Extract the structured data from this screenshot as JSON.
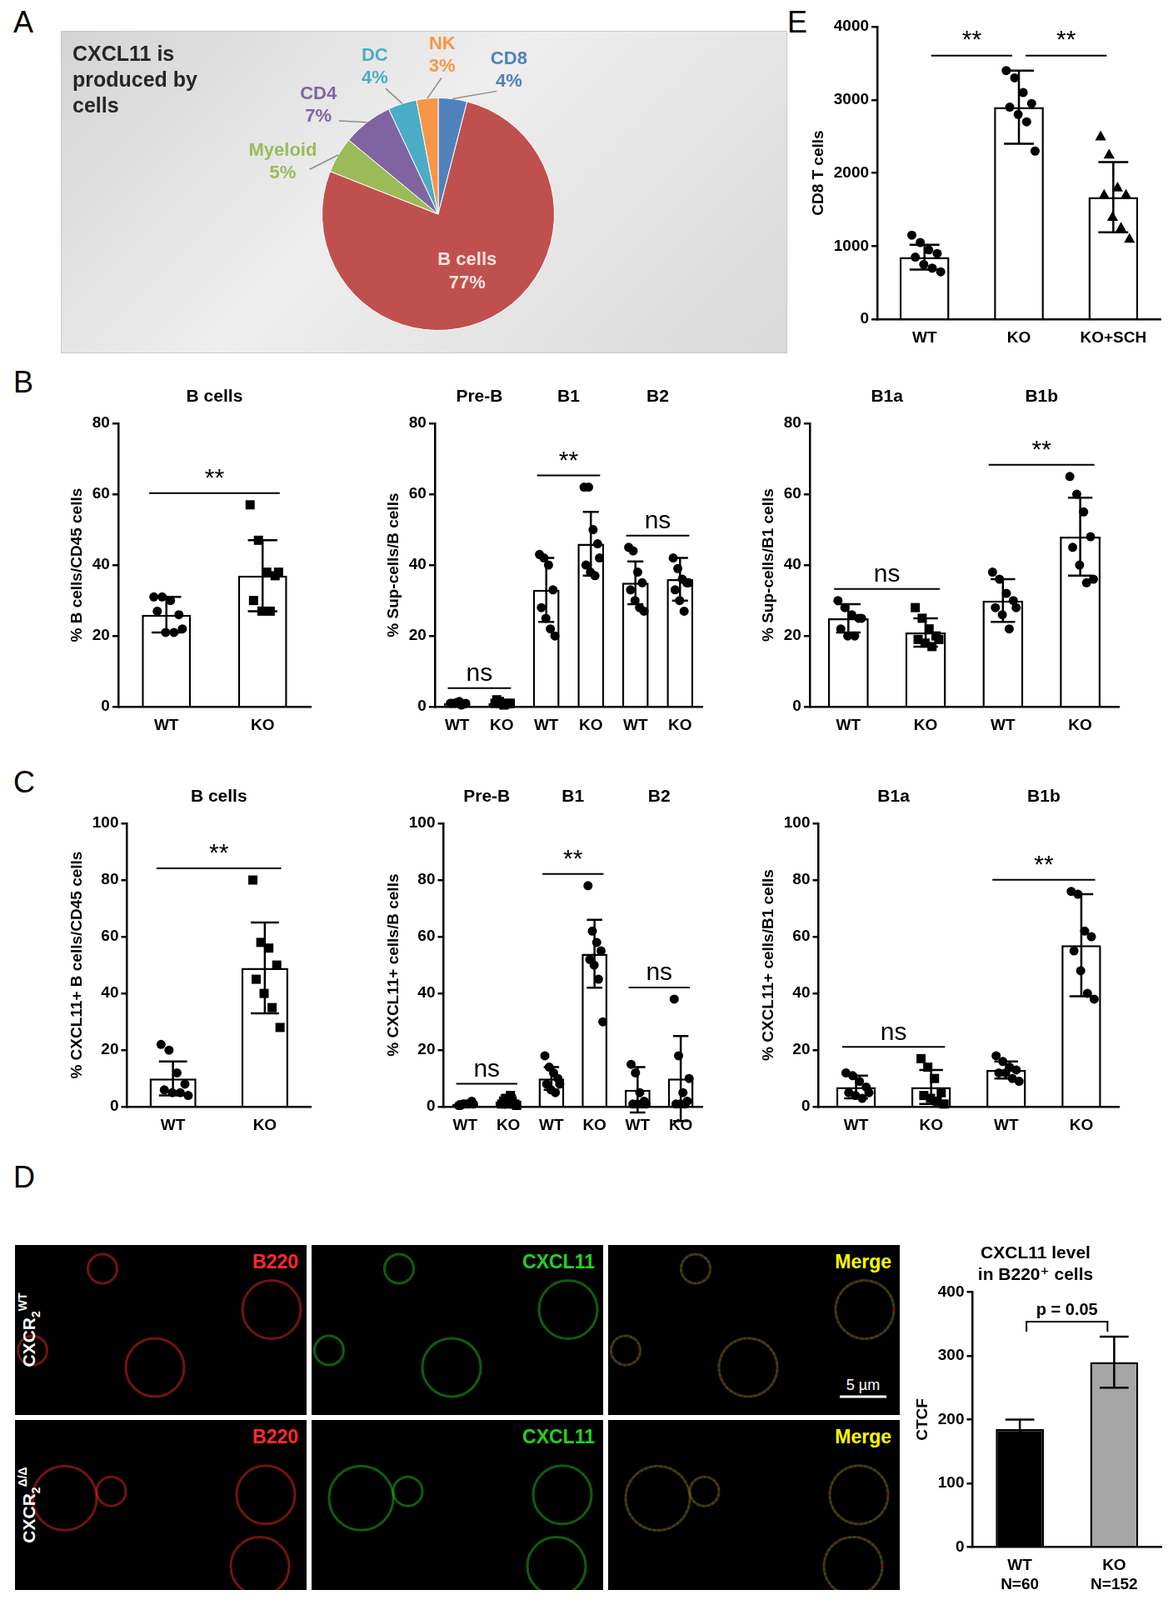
{
  "panel_labels": [
    "A",
    "B",
    "C",
    "D",
    "E"
  ],
  "chart_data": [
    {
      "panel": "A",
      "type": "pie",
      "title": "CXCL11 is produced by cells",
      "categories": [
        "CD8",
        "B cells",
        "Myeloid",
        "CD4",
        "DC",
        "NK"
      ],
      "values": [
        4,
        77,
        5,
        7,
        4,
        3
      ],
      "value_labels": [
        "4%",
        "77%",
        "5%",
        "7%",
        "4%",
        "3%"
      ],
      "colors": [
        "#4f81bd",
        "#c0504d",
        "#9bbb59",
        "#8064a2",
        "#4bacc6",
        "#f79646"
      ],
      "data_labels": true
    },
    {
      "panel": "B",
      "type": "bar",
      "categories": [
        "WT",
        "KO"
      ],
      "values": [
        26,
        37
      ],
      "errors": [
        5,
        10
      ],
      "points": [
        [
          31,
          31,
          30,
          26,
          27,
          21,
          21,
          22
        ],
        [
          57,
          47,
          38,
          37,
          30,
          27,
          27,
          38
        ]
      ],
      "markers": [
        "circle",
        "rect"
      ],
      "groups": [
        {
          "label": "B cells",
          "significance": "**"
        }
      ],
      "y_label": "% B cells/CD45 cells",
      "ylim": [
        0,
        80
      ],
      "yticks": [
        0,
        20,
        40,
        60,
        80
      ],
      "color": "#ffffff",
      "grid": false
    },
    {
      "panel": "B",
      "type": "bar",
      "categories": [
        "WT",
        "KO",
        "WT",
        "KO",
        "WT",
        "KO"
      ],
      "values": [
        1,
        1,
        33,
        46,
        35,
        36
      ],
      "errors": [
        0.5,
        0.5,
        9,
        9,
        6,
        6
      ],
      "points": [
        [
          1,
          1,
          1.5,
          0.8,
          1,
          1.2,
          0.5,
          1
        ],
        [
          1,
          1.5,
          0.5,
          1,
          2,
          1,
          0.8,
          1
        ],
        [
          43,
          42,
          40,
          33,
          28,
          25,
          22,
          20
        ],
        [
          62,
          62,
          50,
          46,
          40,
          38,
          37,
          42
        ],
        [
          45,
          44,
          38,
          35,
          33,
          30,
          28,
          27
        ],
        [
          42,
          39,
          36,
          35,
          33,
          30,
          27,
          35
        ]
      ],
      "markers": [
        "circle",
        "rect",
        "circle",
        "circle",
        "circle",
        "circle"
      ],
      "groups": [
        {
          "label": "Pre-B",
          "significance": "ns"
        },
        {
          "label": "B1",
          "significance": "**"
        },
        {
          "label": "B2",
          "significance": "ns"
        }
      ],
      "y_label": "% Sup-cells/B cells",
      "ylim": [
        0,
        80
      ],
      "yticks": [
        0,
        20,
        40,
        60,
        80
      ],
      "color": "#ffffff",
      "grid": false
    },
    {
      "panel": "B",
      "type": "bar",
      "categories": [
        "WT",
        "KO",
        "WT",
        "KO"
      ],
      "values": [
        25,
        21,
        30,
        48
      ],
      "errors": [
        4,
        4,
        6,
        11
      ],
      "points": [
        [
          30,
          28,
          26,
          25,
          22,
          20,
          20,
          25
        ],
        [
          28,
          25,
          22,
          20,
          19,
          18,
          17,
          19
        ],
        [
          38,
          36,
          32,
          30,
          28,
          26,
          22,
          28
        ],
        [
          65,
          60,
          55,
          48,
          45,
          40,
          35,
          36
        ]
      ],
      "markers": [
        "circle",
        "rect",
        "circle",
        "circle"
      ],
      "groups": [
        {
          "label": "B1a",
          "significance": "ns"
        },
        {
          "label": "B1b",
          "significance": "**"
        }
      ],
      "y_label": "% Sup-cells/B1 cells",
      "ylim": [
        0,
        80
      ],
      "yticks": [
        0,
        20,
        40,
        60,
        80
      ],
      "color": "#ffffff",
      "grid": false
    },
    {
      "panel": "C",
      "type": "bar",
      "categories": [
        "WT",
        "KO"
      ],
      "values": [
        10,
        49
      ],
      "errors": [
        6,
        16
      ],
      "points": [
        [
          22,
          20,
          12,
          8,
          6,
          5,
          5,
          4
        ],
        [
          80,
          58,
          56,
          50,
          45,
          40,
          35,
          28
        ]
      ],
      "markers": [
        "circle",
        "rect"
      ],
      "groups": [
        {
          "label": "B cells",
          "significance": "**"
        }
      ],
      "y_label": "% CXCL11+ B cells/CD45 cells",
      "ylim": [
        0,
        100
      ],
      "yticks": [
        0,
        20,
        40,
        60,
        80,
        100
      ],
      "color": "#ffffff",
      "grid": false
    },
    {
      "panel": "C",
      "type": "bar",
      "categories": [
        "WT",
        "KO",
        "WT",
        "KO",
        "WT",
        "KO"
      ],
      "values": [
        1,
        2,
        10,
        54,
        6,
        10
      ],
      "errors": [
        1,
        2,
        4,
        12,
        8,
        15
      ],
      "points": [
        [
          0.5,
          1,
          1,
          2,
          0.5,
          1,
          1,
          1
        ],
        [
          1,
          3,
          4,
          1,
          2,
          1,
          2,
          0.5
        ],
        [
          18,
          14,
          12,
          10,
          8,
          6,
          5,
          8
        ],
        [
          78,
          62,
          58,
          55,
          52,
          50,
          45,
          30
        ],
        [
          15,
          12,
          5,
          2,
          1,
          1,
          1,
          1
        ],
        [
          38,
          18,
          5,
          2,
          1,
          1,
          1,
          10
        ]
      ],
      "markers": [
        "circle",
        "rect",
        "circle",
        "circle",
        "circle",
        "circle"
      ],
      "groups": [
        {
          "label": "Pre-B",
          "significance": "ns"
        },
        {
          "label": "B1",
          "significance": "**"
        },
        {
          "label": "B2",
          "significance": "ns"
        }
      ],
      "y_label": "% CXCL11+ cells/B cells",
      "ylim": [
        0,
        100
      ],
      "yticks": [
        0,
        20,
        40,
        60,
        80,
        100
      ],
      "color": "#ffffff",
      "grid": false
    },
    {
      "panel": "C",
      "type": "bar",
      "categories": [
        "WT",
        "KO",
        "WT",
        "KO"
      ],
      "values": [
        7,
        7,
        13,
        57
      ],
      "errors": [
        4,
        6,
        3,
        18
      ],
      "points": [
        [
          12,
          11,
          9,
          7,
          5,
          4,
          3,
          5
        ],
        [
          17,
          14,
          10,
          5,
          4,
          3,
          2,
          1
        ],
        [
          18,
          16,
          14,
          13,
          12,
          12,
          10,
          9
        ],
        [
          76,
          75,
          62,
          60,
          55,
          48,
          40,
          38
        ]
      ],
      "markers": [
        "circle",
        "rect",
        "circle",
        "circle"
      ],
      "groups": [
        {
          "label": "B1a",
          "significance": "ns"
        },
        {
          "label": "B1b",
          "significance": "**"
        }
      ],
      "y_label": "% CXCL11+ cells/B1 cells",
      "ylim": [
        0,
        100
      ],
      "yticks": [
        0,
        20,
        40,
        60,
        80,
        100
      ],
      "color": "#ffffff",
      "grid": false
    },
    {
      "panel": "D",
      "type": "bar",
      "title": [
        "CXCL11 level",
        "in B220⁺ cells"
      ],
      "categories": [
        "WT",
        "KO"
      ],
      "category_notes": [
        "N=60",
        "N=152"
      ],
      "values": [
        185,
        290
      ],
      "errors": [
        15,
        40
      ],
      "colors": [
        "#000000",
        "#a6a6a6"
      ],
      "comparisons": [
        {
          "between": [
            "WT",
            "KO"
          ],
          "label": "p = 0.05"
        }
      ],
      "y_label": "CTCF",
      "ylim": [
        0,
        400
      ],
      "yticks": [
        0,
        100,
        200,
        300,
        400
      ],
      "grid": false
    },
    {
      "panel": "E",
      "type": "bar",
      "categories": [
        "WT",
        "KO",
        "KO+SCH"
      ],
      "values": [
        850,
        2900,
        1670
      ],
      "errors": [
        170,
        500,
        480
      ],
      "points": [
        [
          1150,
          1050,
          950,
          900,
          850,
          750,
          700,
          650
        ],
        [
          3400,
          3300,
          3100,
          2950,
          2900,
          2800,
          2700,
          2300
        ],
        [
          2500,
          2250,
          1800,
          1700,
          1700,
          1400,
          1250,
          1100
        ]
      ],
      "markers": [
        "circle",
        "circle",
        "triangle"
      ],
      "comparisons": [
        {
          "between": [
            "WT",
            "KO"
          ],
          "label": "**"
        },
        {
          "between": [
            "KO",
            "KO+SCH"
          ],
          "label": "**"
        }
      ],
      "y_label": "CD8 T cells",
      "ylim": [
        0,
        4000
      ],
      "yticks": [
        0,
        1000,
        2000,
        3000,
        4000
      ],
      "color": "#ffffff",
      "grid": false
    }
  ],
  "micrographs": {
    "panel": "D",
    "channels": [
      {
        "name": "B220",
        "color": "#ff2a2a"
      },
      {
        "name": "CXCL11",
        "color": "#22d022"
      },
      {
        "name": "Merge",
        "color": "#ffff00"
      }
    ],
    "rows": [
      {
        "base": "CXCR",
        "sub": "2",
        "sup": "WT"
      },
      {
        "base": "CXCR",
        "sub": "2",
        "sup": "Δ/Δ"
      }
    ],
    "scale_bar": "5 µm"
  }
}
